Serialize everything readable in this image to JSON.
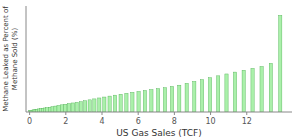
{
  "chart_data": {
    "type": "bar",
    "xlabel": "US Gas Sales (TCF)",
    "ylabel": "Methane Leaked as Percent of\nMethane Sold (%)",
    "x": [
      0.04,
      0.1,
      0.17,
      0.25,
      0.33,
      0.42,
      0.52,
      0.62,
      0.73,
      0.85,
      0.98,
      1.12,
      1.27,
      1.43,
      1.6,
      1.78,
      1.97,
      2.17,
      2.38,
      2.6,
      2.83,
      3.07,
      3.32,
      3.58,
      3.85,
      4.13,
      4.42,
      4.72,
      5.03,
      5.35,
      5.68,
      6.02,
      6.37,
      6.73,
      7.1,
      7.48,
      7.87,
      8.27,
      8.68,
      9.1,
      9.53,
      9.97,
      10.42,
      10.88,
      11.35,
      11.83,
      12.32,
      12.82,
      13.33,
      13.85
    ],
    "values": [
      0.02,
      0.025,
      0.03,
      0.035,
      0.04,
      0.045,
      0.05,
      0.055,
      0.06,
      0.065,
      0.07,
      0.075,
      0.085,
      0.095,
      0.105,
      0.115,
      0.125,
      0.135,
      0.145,
      0.155,
      0.165,
      0.18,
      0.195,
      0.21,
      0.225,
      0.24,
      0.255,
      0.27,
      0.285,
      0.3,
      0.315,
      0.33,
      0.345,
      0.36,
      0.375,
      0.39,
      0.41,
      0.43,
      0.46,
      0.49,
      0.52,
      0.55,
      0.58,
      0.61,
      0.64,
      0.67,
      0.7,
      0.73,
      0.78,
      1.55
    ],
    "color": "#aaf0aa",
    "xlim": [
      -0.2,
      14.5
    ],
    "ylim": [
      0,
      1.7
    ],
    "xticks": [
      0,
      2,
      4,
      6,
      8,
      10,
      12
    ],
    "yticks": [],
    "grid": true,
    "tick_labels": "x"
  }
}
